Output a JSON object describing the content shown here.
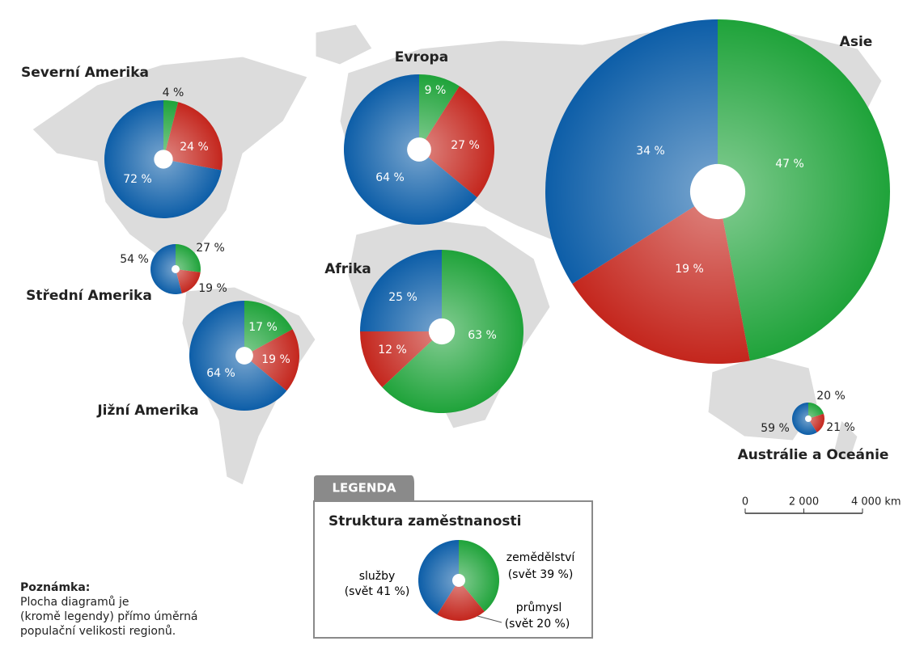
{
  "colors": [
    "#1fa33a",
    "#c4261d",
    "#0d5ea8"
  ],
  "regions": [
    {
      "name": "Severní Amerika",
      "values": [
        4,
        24,
        72
      ],
      "value_labels": [
        "4 %",
        "24 %",
        "72 %"
      ]
    },
    {
      "name": "Evropa",
      "values": [
        9,
        27,
        64
      ],
      "value_labels": [
        "9 %",
        "27 %",
        "64 %"
      ]
    },
    {
      "name": "Asie",
      "values": [
        47,
        19,
        34
      ],
      "value_labels": [
        "47 %",
        "19 %",
        "34 %"
      ]
    },
    {
      "name": "Střední Amerika",
      "values": [
        27,
        19,
        54
      ],
      "value_labels": [
        "27 %",
        "19 %",
        "54 %"
      ]
    },
    {
      "name": "Afrika",
      "values": [
        63,
        12,
        25
      ],
      "value_labels": [
        "63 %",
        "12 %",
        "25 %"
      ]
    },
    {
      "name": "Jižní Amerika",
      "values": [
        17,
        19,
        64
      ],
      "value_labels": [
        "17 %",
        "19 %",
        "64 %"
      ]
    },
    {
      "name": "Austrálie a Oceánie",
      "values": [
        20,
        21,
        59
      ],
      "value_labels": [
        "20 %",
        "21 %",
        "59 %"
      ]
    }
  ],
  "legend": {
    "tab": "LEGENDA",
    "title": "Struktura zaměstnanosti",
    "items": [
      {
        "name": "zemědělství",
        "value": 39,
        "value_label": "(svět 39 %)"
      },
      {
        "name": "průmysl",
        "value": 20,
        "value_label": "(svět 20 %)"
      },
      {
        "name": "služby",
        "value": 41,
        "value_label": "(svět 41 %)"
      }
    ]
  },
  "scale": {
    "ticks": [
      {
        "value": 0,
        "label": "0"
      },
      {
        "value": 2000,
        "label": "2 000"
      },
      {
        "value": 4000,
        "label": "4 000 km"
      }
    ]
  },
  "note": {
    "title": "Poznámka:",
    "lines": [
      "Plocha diagramů je",
      "(kromě legendy) přímo úměrná",
      "populační velikosti regionů."
    ]
  }
}
